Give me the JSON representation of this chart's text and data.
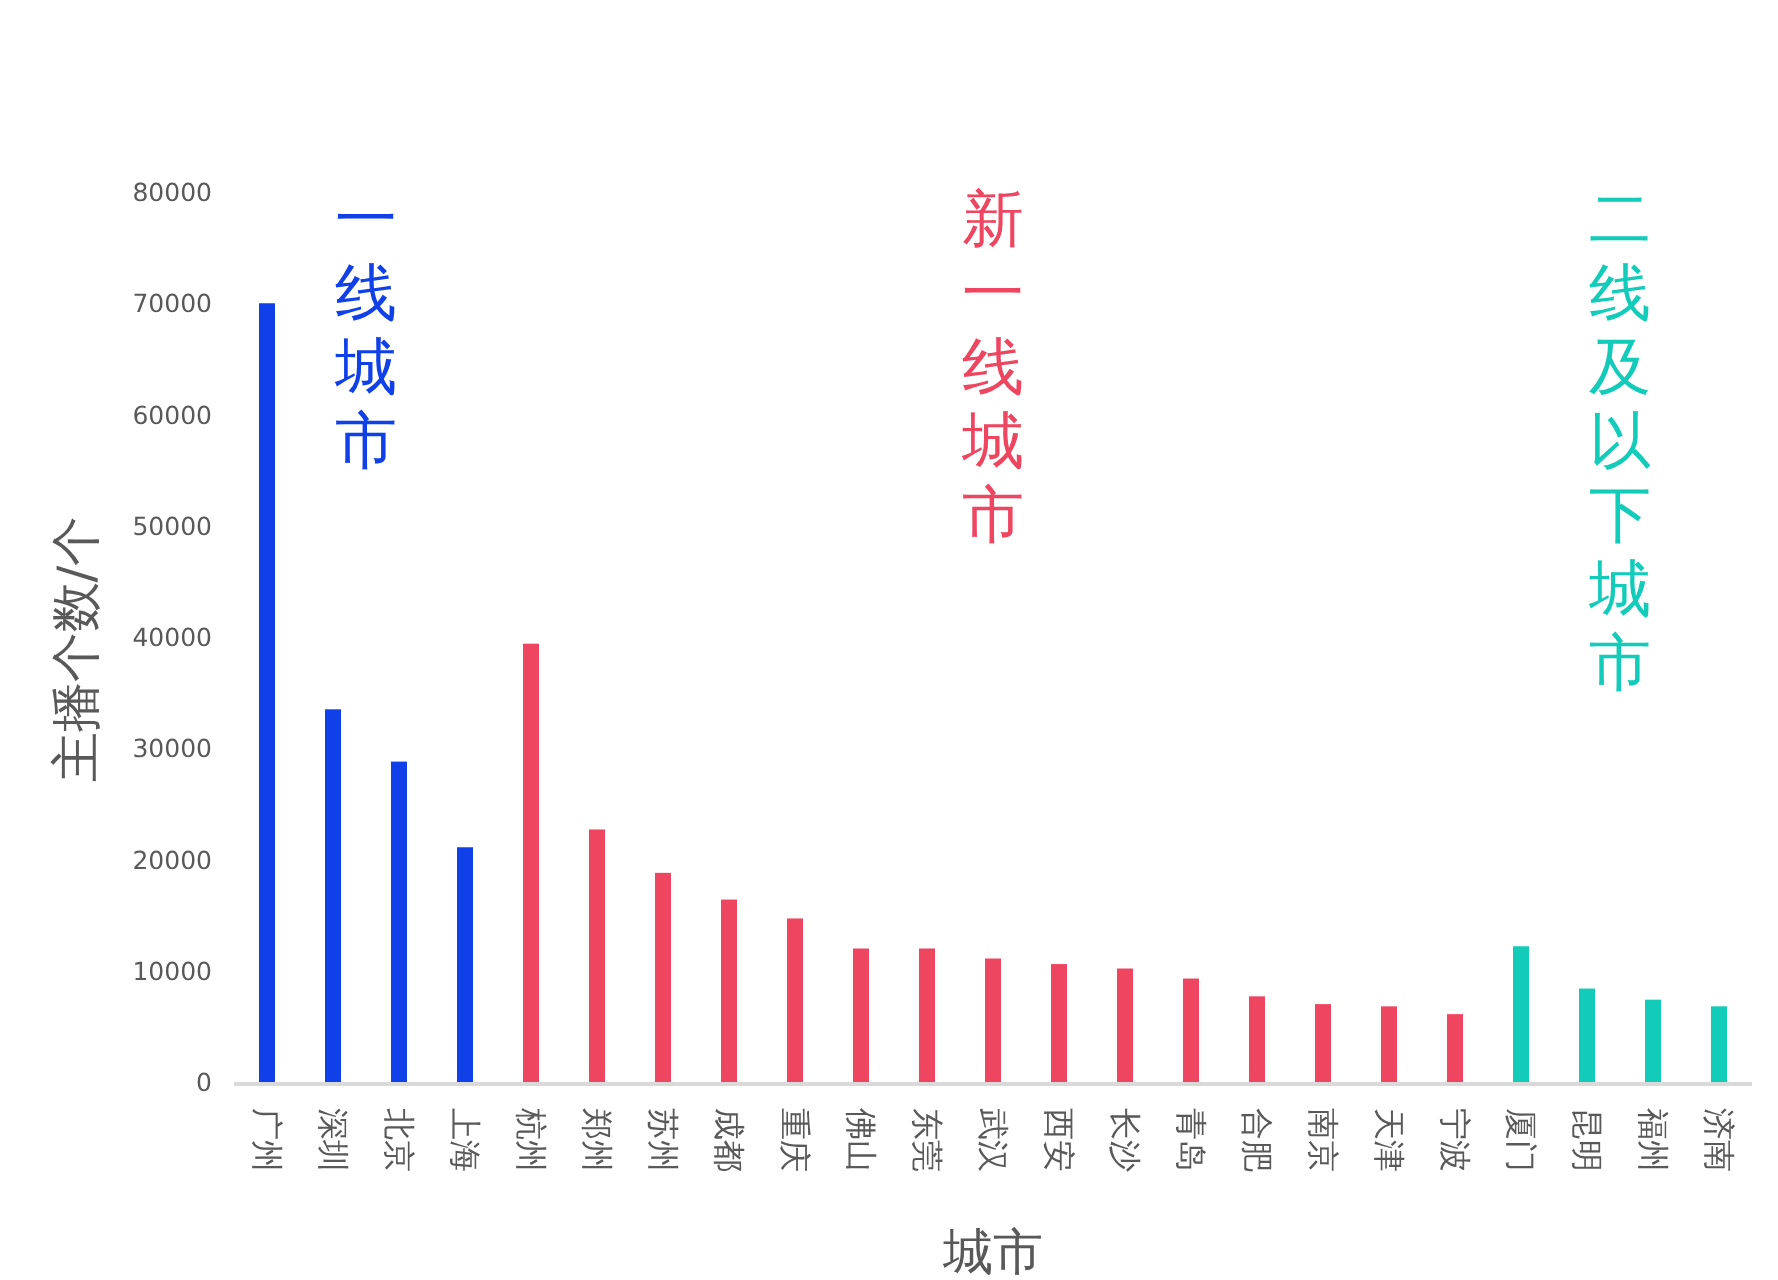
{
  "chart_data": {
    "type": "bar",
    "xlabel": "城市",
    "ylabel": "主播个数/个",
    "categories": [
      "广州",
      "深圳",
      "北京",
      "上海",
      "杭州",
      "郑州",
      "苏州",
      "成都",
      "重庆",
      "佛山",
      "东莞",
      "武汉",
      "西安",
      "长沙",
      "青岛",
      "合肥",
      "南京",
      "天津",
      "宁波",
      "厦门",
      "昆明",
      "福州",
      "济南"
    ],
    "series": [
      {
        "name": "一线城市",
        "color": "#0f40e8",
        "values": [
          70000,
          33500,
          28800,
          21100,
          null,
          null,
          null,
          null,
          null,
          null,
          null,
          null,
          null,
          null,
          null,
          null,
          null,
          null,
          null,
          null,
          null,
          null,
          null
        ]
      },
      {
        "name": "新一线城市",
        "color": "#ee4560",
        "values": [
          null,
          null,
          null,
          null,
          39400,
          22700,
          18800,
          16400,
          14700,
          12000,
          12000,
          11100,
          10600,
          10200,
          9300,
          7700,
          7000,
          6800,
          6100,
          null,
          null,
          null,
          null
        ]
      },
      {
        "name": "二线及以下城市",
        "color": "#12cbb9",
        "values": [
          null,
          null,
          null,
          null,
          null,
          null,
          null,
          null,
          null,
          null,
          null,
          null,
          null,
          null,
          null,
          null,
          null,
          null,
          null,
          12200,
          8400,
          7400,
          6800
        ]
      }
    ],
    "ylim": [
      0,
      80000
    ],
    "yticks": [
      0,
      10000,
      20000,
      30000,
      40000,
      50000,
      60000,
      70000,
      80000
    ]
  }
}
